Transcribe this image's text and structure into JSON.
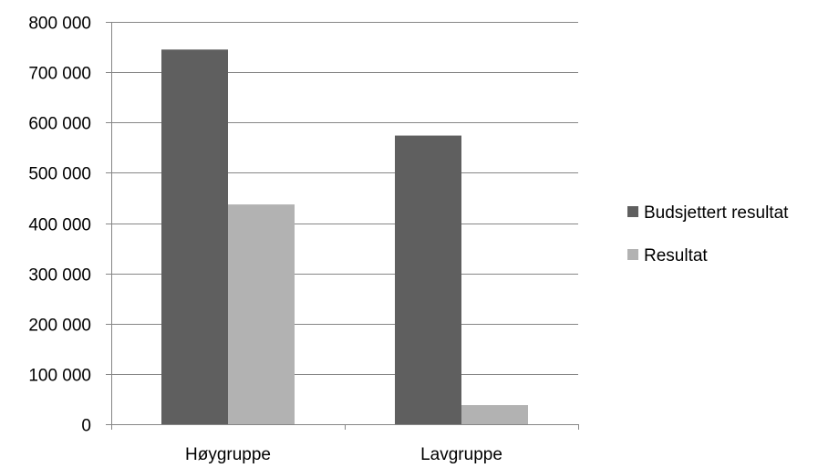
{
  "chart_data": {
    "type": "bar",
    "categories": [
      "Høygruppe",
      "Lavgruppe"
    ],
    "series": [
      {
        "name": "Budsjettert resultat",
        "values": [
          745000,
          574000
        ],
        "color": "#5f5f5f"
      },
      {
        "name": "Resultat",
        "values": [
          437000,
          38000
        ],
        "color": "#b2b2b2"
      }
    ],
    "ylim": [
      0,
      800000
    ],
    "yticks": [
      0,
      100000,
      200000,
      300000,
      400000,
      500000,
      600000,
      700000,
      800000
    ],
    "ytick_labels": [
      "0",
      "100 000",
      "200 000",
      "300 000",
      "400 000",
      "500 000",
      "600 000",
      "700 000",
      "800 000"
    ],
    "title": "",
    "xlabel": "",
    "ylabel": "",
    "grid": true,
    "legend_position": "right"
  }
}
